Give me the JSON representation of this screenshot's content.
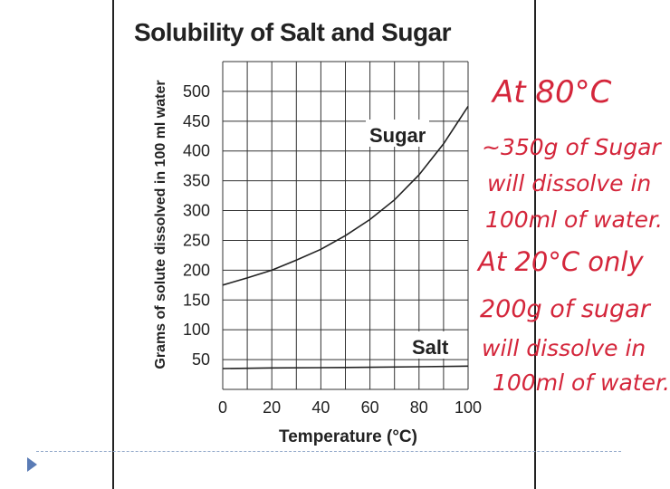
{
  "chart_data": {
    "type": "line",
    "title": "Solubility of Salt and Sugar",
    "xlabel": "Temperature (°C)",
    "ylabel": "Grams of solute dissolved in 100 ml water",
    "xlim": [
      0,
      100
    ],
    "ylim": [
      0,
      550
    ],
    "x_ticks": [
      "0",
      "20",
      "40",
      "60",
      "80",
      "100"
    ],
    "y_ticks": [
      "50",
      "100",
      "150",
      "200",
      "250",
      "300",
      "350",
      "400",
      "450",
      "500"
    ],
    "grid": true,
    "series": [
      {
        "name": "Sugar",
        "color": "#222222",
        "x": [
          0,
          10,
          20,
          30,
          40,
          50,
          60,
          70,
          80,
          90,
          100
        ],
        "y": [
          175,
          187,
          200,
          217,
          235,
          258,
          285,
          318,
          360,
          412,
          475
        ]
      },
      {
        "name": "Salt",
        "color": "#222222",
        "x": [
          0,
          20,
          40,
          60,
          80,
          100
        ],
        "y": [
          35,
          36,
          36.5,
          37,
          38,
          39
        ]
      }
    ],
    "series_labels": [
      "Sugar",
      "Salt"
    ]
  },
  "annotations": {
    "color": "#d4263b",
    "lines": [
      "At 80°C",
      "~350g of Sugar",
      "will dissolve in",
      "100ml of water.",
      "At 20°C only",
      "200g of sugar",
      "will dissolve in",
      "100ml of water."
    ]
  }
}
